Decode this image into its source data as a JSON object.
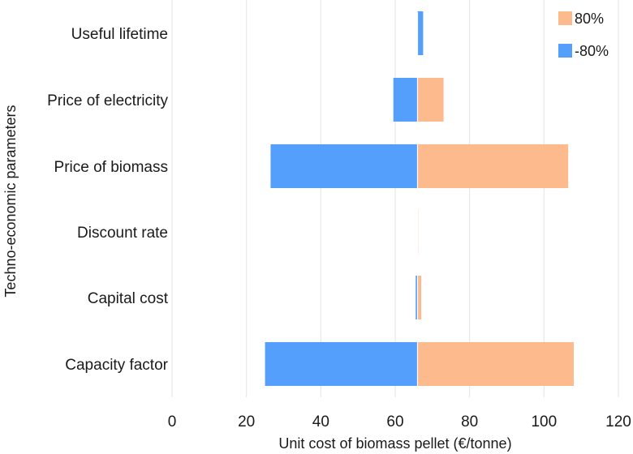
{
  "chart_data": {
    "type": "bar",
    "orientation": "horizontal",
    "subtype": "tornado",
    "xlabel": "Unit cost of biomass pellet (€/tonne)",
    "ylabel": "Techno-economic parameters",
    "xlim": [
      0,
      120
    ],
    "xticks": [
      "0",
      "20",
      "40",
      "60",
      "80",
      "100",
      "120"
    ],
    "baseline": 66,
    "grid": true,
    "legend_position": "top-right",
    "categories": [
      "Useful lifetime",
      "Price of electricity",
      "Price of biomass",
      "Discount rate",
      "Capital cost",
      "Capacity factor"
    ],
    "series": [
      {
        "name": "80%",
        "color": "#FDBA8C",
        "values": [
          66,
          73,
          106.5,
          66.1,
          67,
          108
        ]
      },
      {
        "name": "-80%",
        "color": "#559FFC",
        "values": [
          67.5,
          59.5,
          26.5,
          65.9,
          65.5,
          25
        ]
      }
    ]
  }
}
